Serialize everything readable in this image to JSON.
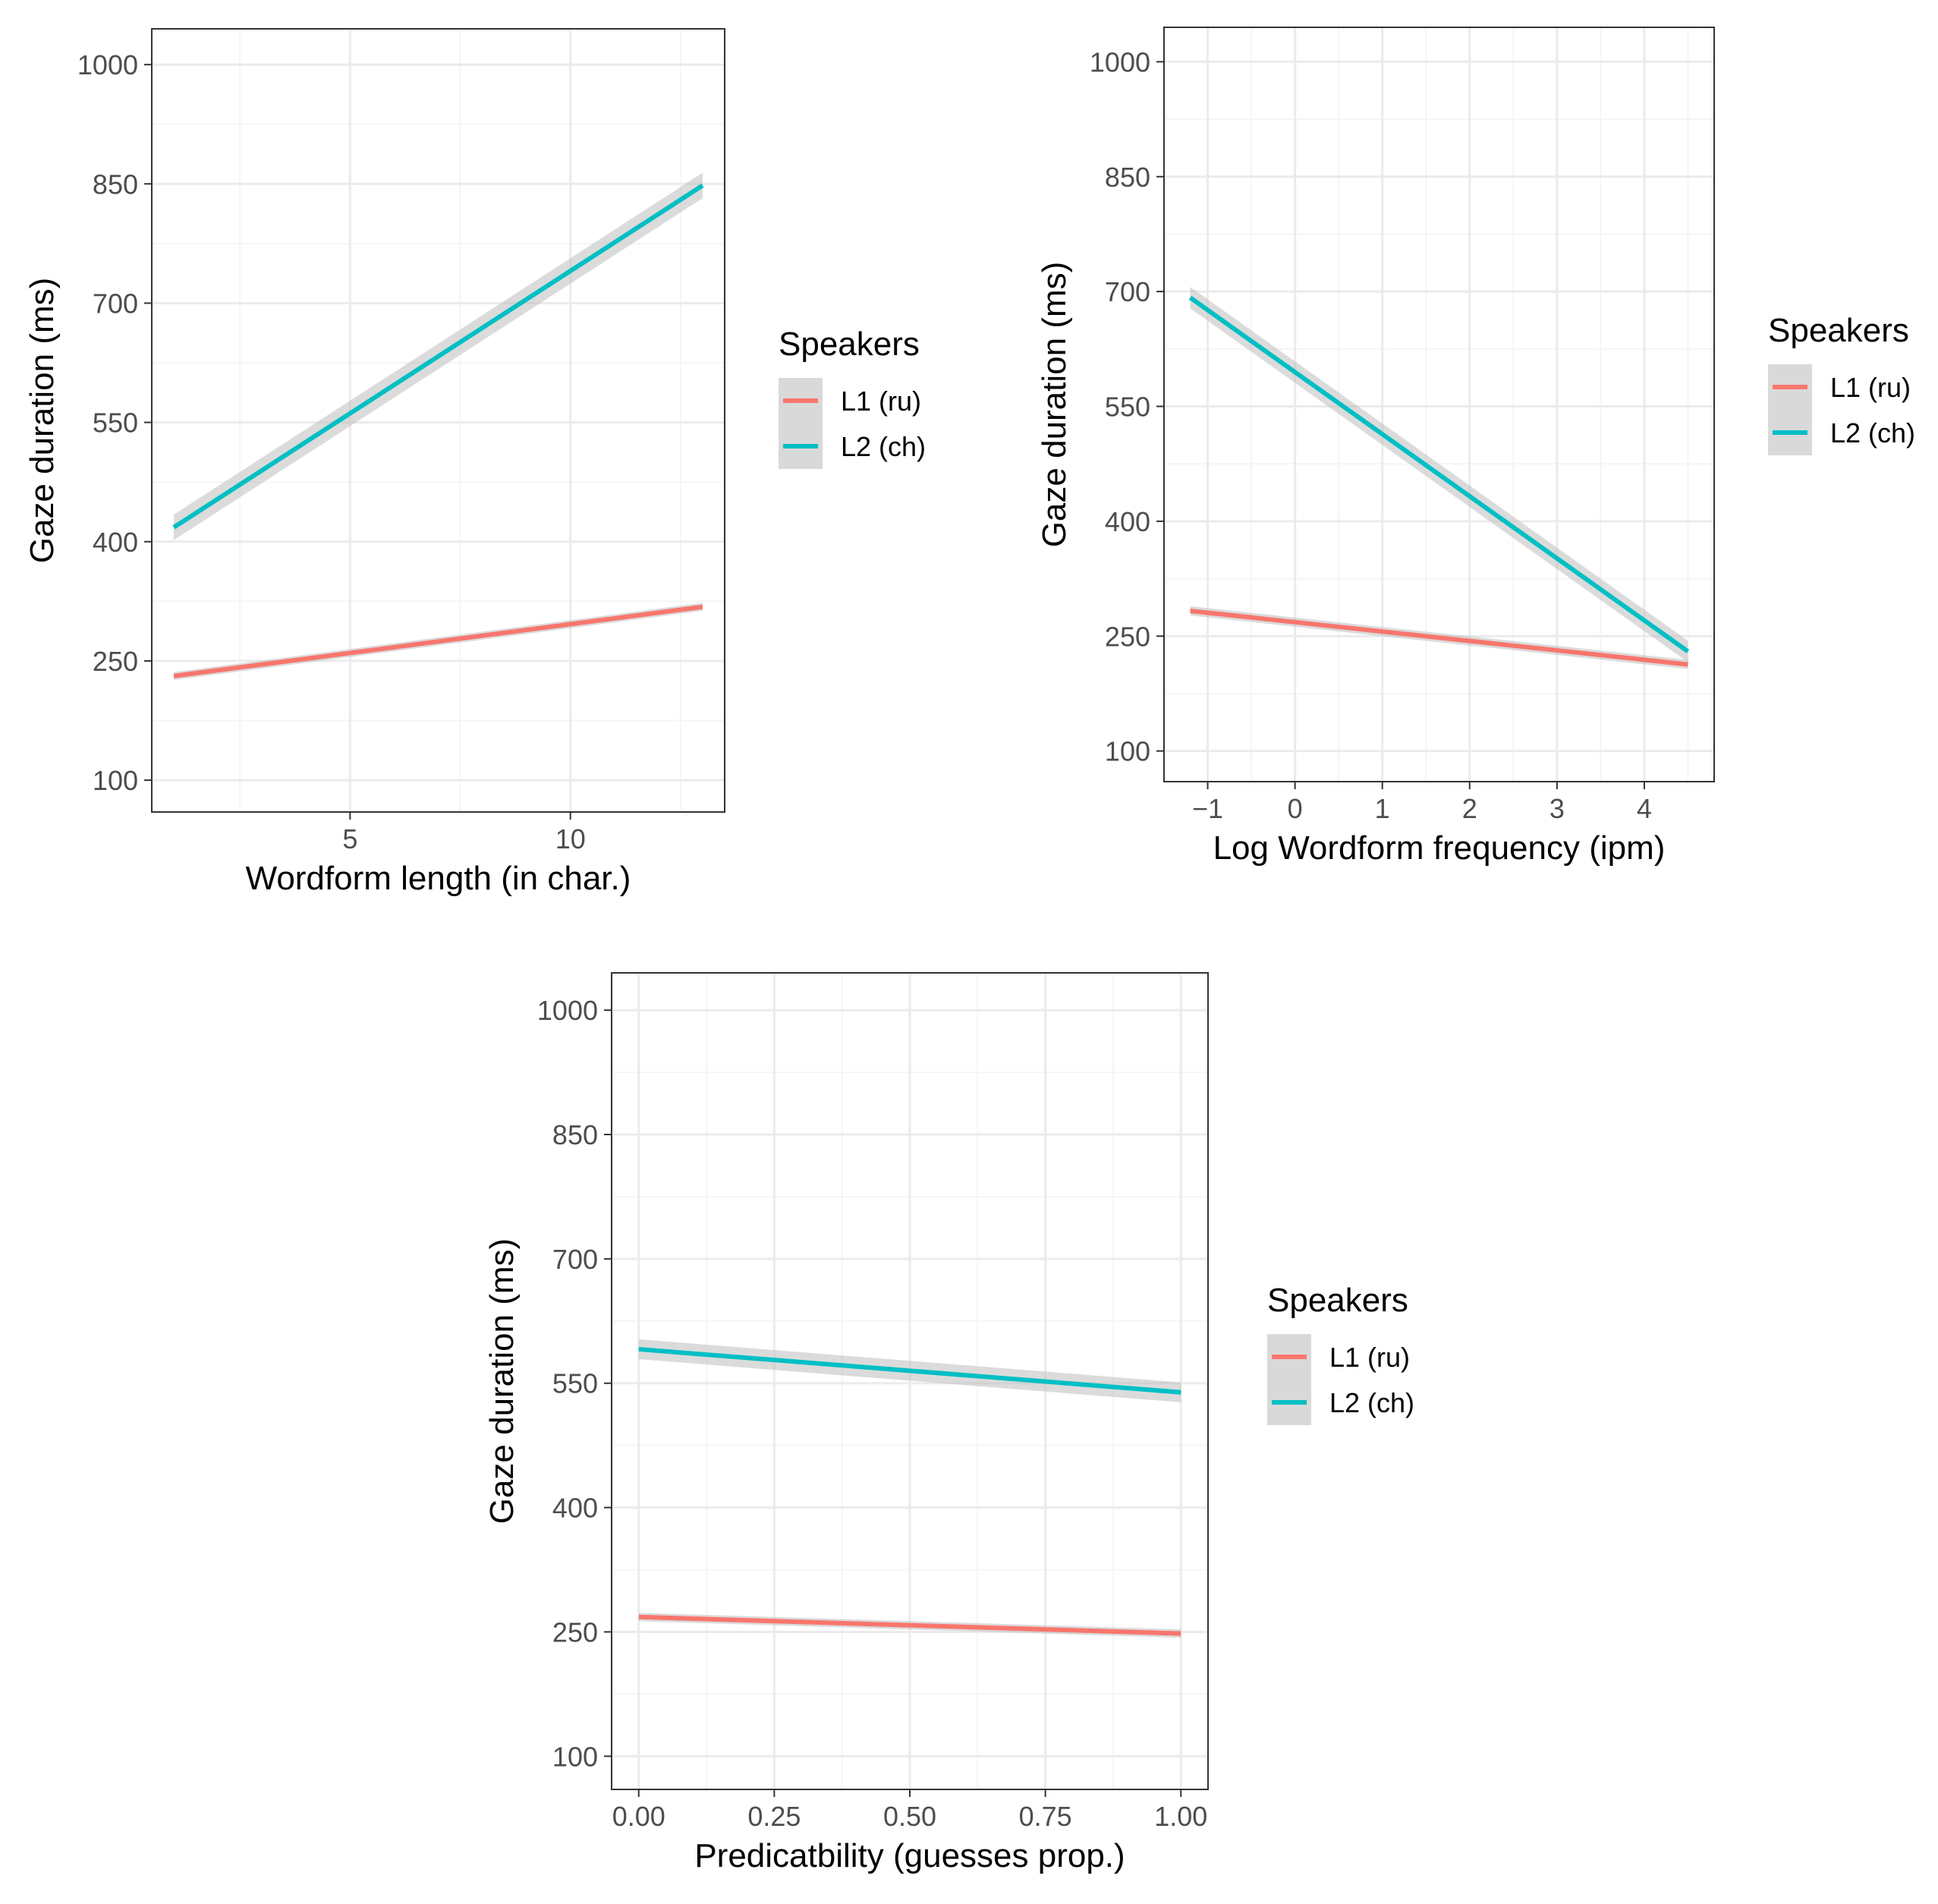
{
  "colors": {
    "l1": "#F8766D",
    "l2": "#00BFC4",
    "ribbon": "#BEBEBE",
    "grid_major": "#EBEBEB",
    "grid_minor": "#F5F5F5",
    "panel_border": "#333333",
    "legend_key_bg": "#D9D9D9"
  },
  "chart_data": [
    {
      "type": "line",
      "xlabel": "Wordform length (in char.)",
      "ylabel": "Gaze duration (ms)",
      "xlim": [
        0.5,
        13.5
      ],
      "ylim": [
        60,
        1045
      ],
      "xticks": [
        5,
        10
      ],
      "xtick_labels": [
        "5",
        "10"
      ],
      "yticks": [
        100,
        250,
        400,
        550,
        700,
        850,
        1000
      ],
      "ytick_labels": [
        "100",
        "250",
        "400",
        "550",
        "700",
        "850",
        "1000"
      ],
      "legend_title": "Speakers",
      "series": [
        {
          "name": "L1 (ru)",
          "color_key": "l1",
          "x": [
            1,
            13
          ],
          "y": [
            231,
            318
          ],
          "ribbon": 5
        },
        {
          "name": "L2 (ch)",
          "color_key": "l2",
          "x": [
            1,
            13
          ],
          "y": [
            418,
            848
          ],
          "ribbon": 16
        }
      ]
    },
    {
      "type": "line",
      "xlabel": "Log Wordform frequency (ipm)",
      "ylabel": "Gaze duration (ms)",
      "xlim": [
        -1.5,
        4.8
      ],
      "ylim": [
        60,
        1045
      ],
      "xticks": [
        -1,
        0,
        1,
        2,
        3,
        4
      ],
      "xtick_labels": [
        "−1",
        "0",
        "1",
        "2",
        "3",
        "4"
      ],
      "yticks": [
        100,
        250,
        400,
        550,
        700,
        850,
        1000
      ],
      "ytick_labels": [
        "100",
        "250",
        "400",
        "550",
        "700",
        "850",
        "1000"
      ],
      "legend_title": "Speakers",
      "series": [
        {
          "name": "L1 (ru)",
          "color_key": "l1",
          "x": [
            -1.2,
            4.5
          ],
          "y": [
            283,
            213
          ],
          "ribbon": 6
        },
        {
          "name": "L2 (ch)",
          "color_key": "l2",
          "x": [
            -1.2,
            4.5
          ],
          "y": [
            692,
            230
          ],
          "ribbon": 14
        }
      ]
    },
    {
      "type": "line",
      "xlabel": "Predicatbility (guesses prop.)",
      "ylabel": "Gaze duration (ms)",
      "xlim": [
        -0.05,
        1.05
      ],
      "ylim": [
        60,
        1045
      ],
      "xticks": [
        0.0,
        0.25,
        0.5,
        0.75,
        1.0
      ],
      "xtick_labels": [
        "0.00",
        "0.25",
        "0.50",
        "0.75",
        "1.00"
      ],
      "yticks": [
        100,
        250,
        400,
        550,
        700,
        850,
        1000
      ],
      "ytick_labels": [
        "100",
        "250",
        "400",
        "550",
        "700",
        "850",
        "1000"
      ],
      "legend_title": "Speakers",
      "series": [
        {
          "name": "L1 (ru)",
          "color_key": "l1",
          "x": [
            0,
            1
          ],
          "y": [
            268,
            248
          ],
          "ribbon": 5
        },
        {
          "name": "L2 (ch)",
          "color_key": "l2",
          "x": [
            0,
            1
          ],
          "y": [
            591,
            539
          ],
          "ribbon": 12
        }
      ]
    }
  ]
}
